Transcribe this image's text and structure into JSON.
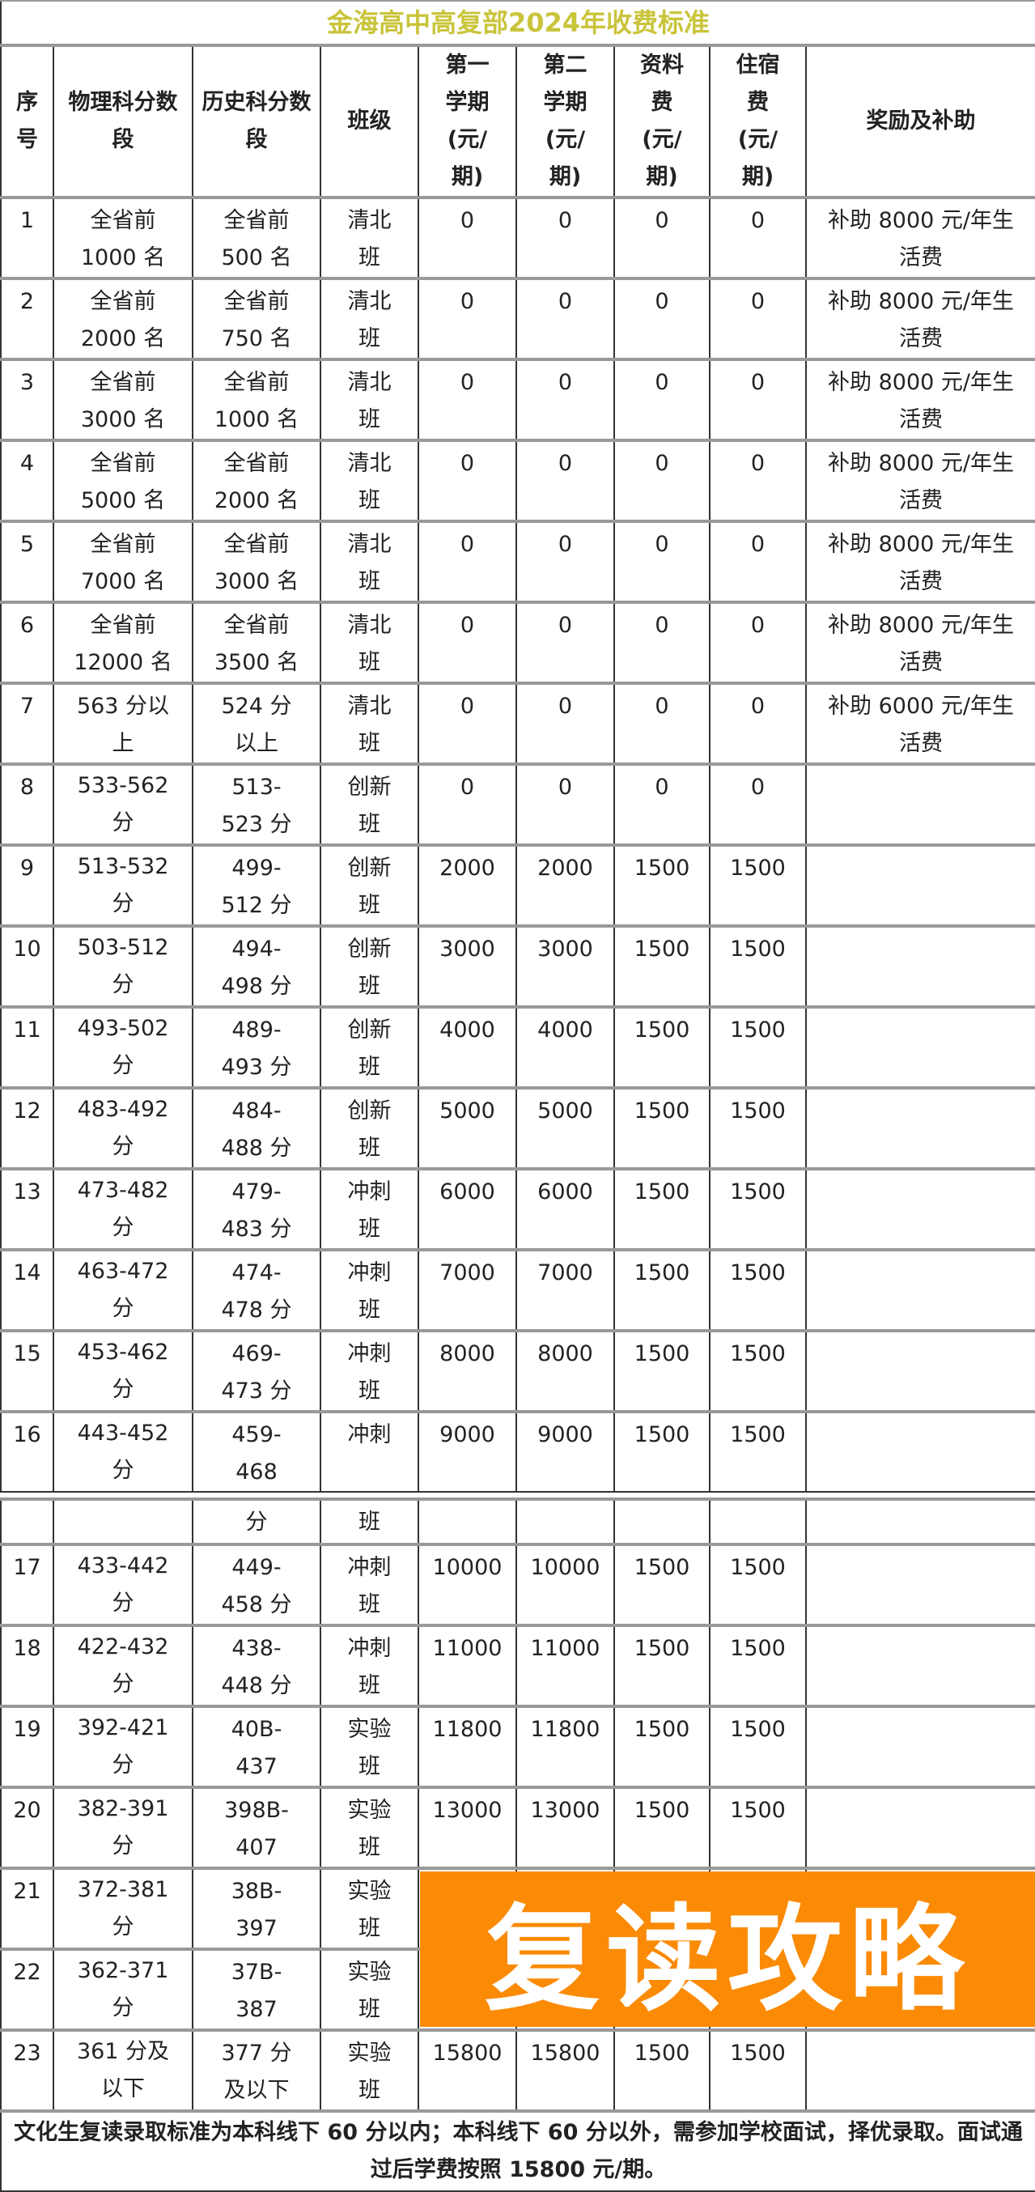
{
  "title": "金海高中高复部2024年收费标准",
  "headers": [
    "序号",
    "物理科分数段",
    "历史科分数段",
    "班级",
    "第一学期(元/期)",
    "第二学期(元/期)",
    "资料费(元/期)",
    "住宿费(元/期)",
    "奖励及补助"
  ],
  "rows": [
    [
      "1",
      "全省前 1000 名",
      "全省前 500 名",
      "清北班",
      "0",
      "0",
      "0",
      "0",
      "补助 8000 元/年生活费"
    ],
    [
      "2",
      "全省前 2000 名",
      "全省前 750 名",
      "清北班",
      "0",
      "0",
      "0",
      "0",
      "补助 8000 元/年生活费"
    ],
    [
      "3",
      "全省前 3000 名",
      "全省前 1000 名",
      "清北班",
      "0",
      "0",
      "0",
      "0",
      "补助 8000 元/年生活费"
    ],
    [
      "4",
      "全省前 5000 名",
      "全省前 2000 名",
      "清北班",
      "0",
      "0",
      "0",
      "0",
      "补助 8000 元/年生活费"
    ],
    [
      "5",
      "全省前 7000 名",
      "全省前 3000 名",
      "清北班",
      "0",
      "0",
      "0",
      "0",
      "补助 8000 元/年生活费"
    ],
    [
      "6",
      "全省前 12000 名",
      "全省前 3500 名",
      "清北班",
      "0",
      "0",
      "0",
      "0",
      "补助 8000 元/年生活费"
    ],
    [
      "7",
      "563 分以上",
      "524 分以上",
      "清北班",
      "0",
      "0",
      "0",
      "0",
      "补助 6000 元/年生活费"
    ],
    [
      "8",
      "533-562分",
      "513-523 分",
      "创新班",
      "0",
      "0",
      "0",
      "0",
      ""
    ],
    [
      "9",
      "513-532分",
      "499-512 分",
      "创新班",
      "2000",
      "2000",
      "1500",
      "1500",
      ""
    ],
    [
      "10",
      "503-512分",
      "494-498 分",
      "创新班",
      "3000",
      "3000",
      "1500",
      "1500",
      ""
    ],
    [
      "11",
      "493-502分",
      "489-493 分",
      "创新班",
      "4000",
      "4000",
      "1500",
      "1500",
      ""
    ],
    [
      "12",
      "483-492分",
      "484-488 分",
      "创新班",
      "5000",
      "5000",
      "1500",
      "1500",
      ""
    ],
    [
      "13",
      "473-482分",
      "479-483 分",
      "冲刺班",
      "6000",
      "6000",
      "1500",
      "1500",
      ""
    ],
    [
      "14",
      "463-472分",
      "474-478 分",
      "冲刺班",
      "7000",
      "7000",
      "1500",
      "1500",
      ""
    ],
    [
      "15",
      "453-462分",
      "469-473 分",
      "冲刺班",
      "8000",
      "8000",
      "1500",
      "1500",
      ""
    ],
    [
      "16",
      "443-452分",
      "459-468",
      "冲刺",
      "9000",
      "9000",
      "1500",
      "1500",
      ""
    ]
  ],
  "continuation": [
    "",
    "",
    "分",
    "班",
    "",
    "",
    "",
    "",
    ""
  ],
  "rows2": [
    [
      "17",
      "433-442分",
      "449-458 分",
      "冲刺班",
      "10000",
      "10000",
      "1500",
      "1500",
      ""
    ],
    [
      "18",
      "422-432分",
      "438-448 分",
      "冲刺班",
      "11000",
      "11000",
      "1500",
      "1500",
      ""
    ],
    [
      "19",
      "392-421分",
      "40B-437",
      "实验班",
      "11800",
      "11800",
      "1500",
      "1500",
      ""
    ],
    [
      "20",
      "382-391分",
      "398B-407",
      "实验班",
      "13000",
      "13000",
      "1500",
      "1500",
      ""
    ],
    [
      "21",
      "372-381分",
      "38B-397",
      "实验班",
      "",
      "",
      "",
      "",
      ""
    ],
    [
      "22",
      "362-371分",
      "37B-387",
      "实验班",
      "",
      "",
      "",
      "",
      ""
    ],
    [
      "23",
      "361 分及以下",
      "377 分及以下",
      "实验班",
      "15800",
      "15800",
      "1500",
      "1500",
      ""
    ]
  ],
  "footer": "文化生复读录取标准为本科线下 60 分以内；本科线下 60 分以外，需参加学校面试，择优录取。面试通过后学费按照 15800 元/期。",
  "watermark": "复读攻略",
  "colors": {
    "title": "#c9c43a",
    "watermark_bg": "#fb8a05"
  }
}
